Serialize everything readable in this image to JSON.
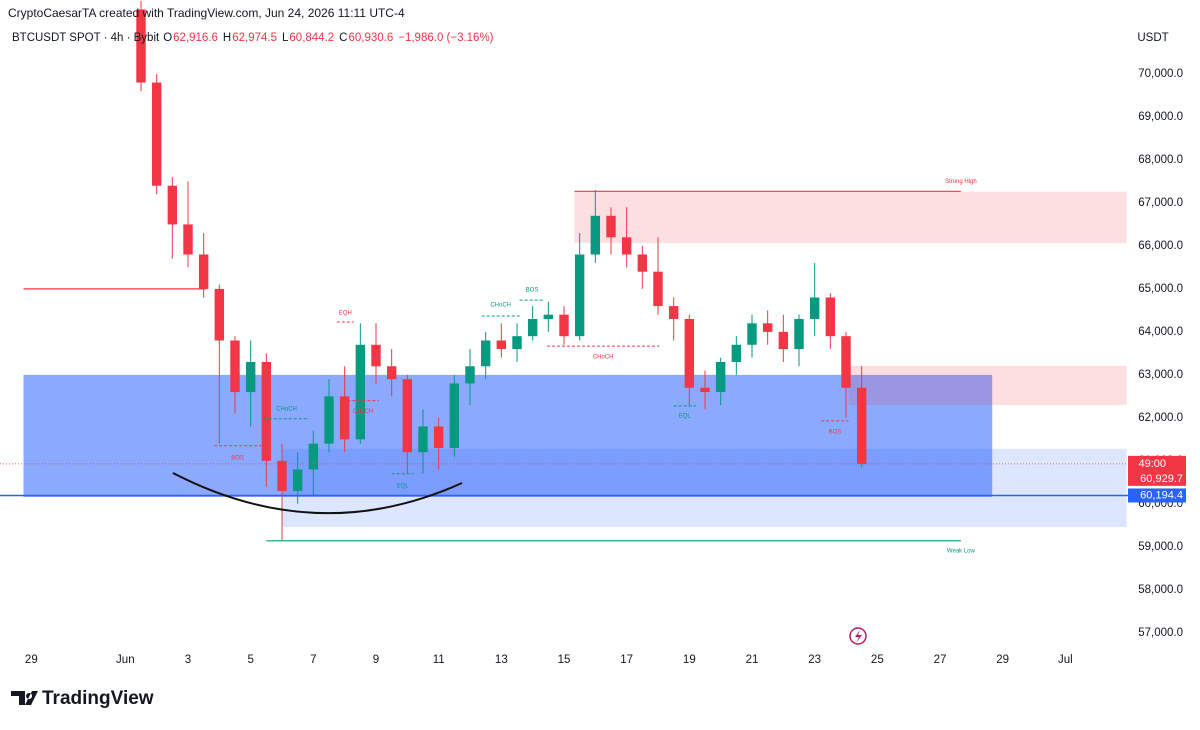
{
  "chart_data": {
    "type": "candlestick",
    "credit": "CryptoCaesarTA created with TradingView.com, Jun 24, 2026 11:11 UTC-4",
    "symbol": "BTCUSDT SPOT · 4h · Bybit",
    "ohlc": [
      {
        "label": "O",
        "value": "62,916.6"
      },
      {
        "label": "H",
        "value": "62,974.5"
      },
      {
        "label": "L",
        "value": "60,844.2"
      },
      {
        "label": "C",
        "value": "60,930.6"
      }
    ],
    "change": "−1,986.0 (−3.16%)",
    "currency": "USDT",
    "brand": "TradingView",
    "up_color": "#089981",
    "down_color": "#f23645",
    "grid": false,
    "xlim": [
      "2026-05-28T00:00",
      "2026-07-03T00:00"
    ],
    "ylim": [
      56600,
      71720
    ],
    "xticks": [
      {
        "value": "2026-05-29T00:00",
        "label": "29"
      },
      {
        "value": "2026-06-01T00:00",
        "label": "Jun"
      },
      {
        "value": "2026-06-03T00:00",
        "label": "3"
      },
      {
        "value": "2026-06-05T00:00",
        "label": "5"
      },
      {
        "value": "2026-06-07T00:00",
        "label": "7"
      },
      {
        "value": "2026-06-09T00:00",
        "label": "9"
      },
      {
        "value": "2026-06-11T00:00",
        "label": "11"
      },
      {
        "value": "2026-06-13T00:00",
        "label": "13"
      },
      {
        "value": "2026-06-15T00:00",
        "label": "15"
      },
      {
        "value": "2026-06-17T00:00",
        "label": "17"
      },
      {
        "value": "2026-06-19T00:00",
        "label": "19"
      },
      {
        "value": "2026-06-21T00:00",
        "label": "21"
      },
      {
        "value": "2026-06-23T00:00",
        "label": "23"
      },
      {
        "value": "2026-06-25T00:00",
        "label": "25"
      },
      {
        "value": "2026-06-27T00:00",
        "label": "27"
      },
      {
        "value": "2026-06-29T00:00",
        "label": "29"
      },
      {
        "value": "2026-07-01T00:00",
        "label": "Jul"
      }
    ],
    "yticks": [
      {
        "value": 57000,
        "label": "57,000.0"
      },
      {
        "value": 58000,
        "label": "58,000.0"
      },
      {
        "value": 59000,
        "label": "59,000.0"
      },
      {
        "value": 60000,
        "label": "60,000.0"
      },
      {
        "value": 61000,
        "label": "61,000.0"
      },
      {
        "value": 62000,
        "label": "62,000.0"
      },
      {
        "value": 63000,
        "label": "63,000.0"
      },
      {
        "value": 64000,
        "label": "64,000.0"
      },
      {
        "value": 65000,
        "label": "65,000.0"
      },
      {
        "value": 66000,
        "label": "66,000.0"
      },
      {
        "value": 67000,
        "label": "67,000.0"
      },
      {
        "value": 68000,
        "label": "68,000.0"
      },
      {
        "value": 69000,
        "label": "69,000.0"
      },
      {
        "value": 70000,
        "label": "70,000.0"
      }
    ],
    "x": [
      "2026-06-01T12:00",
      "2026-06-02T00:00",
      "2026-06-02T12:00",
      "2026-06-03T00:00",
      "2026-06-03T12:00",
      "2026-06-04T00:00",
      "2026-06-04T12:00",
      "2026-06-05T00:00",
      "2026-06-05T12:00",
      "2026-06-06T00:00",
      "2026-06-06T12:00",
      "2026-06-07T00:00",
      "2026-06-07T12:00",
      "2026-06-08T00:00",
      "2026-06-08T12:00",
      "2026-06-09T00:00",
      "2026-06-09T12:00",
      "2026-06-10T00:00",
      "2026-06-10T12:00",
      "2026-06-11T00:00",
      "2026-06-11T12:00",
      "2026-06-12T00:00",
      "2026-06-12T12:00",
      "2026-06-13T00:00",
      "2026-06-13T12:00",
      "2026-06-14T00:00",
      "2026-06-14T12:00",
      "2026-06-15T00:00",
      "2026-06-15T12:00",
      "2026-06-16T00:00",
      "2026-06-16T12:00",
      "2026-06-17T00:00",
      "2026-06-17T12:00",
      "2026-06-18T00:00",
      "2026-06-18T12:00",
      "2026-06-19T00:00",
      "2026-06-19T12:00",
      "2026-06-20T00:00",
      "2026-06-20T12:00",
      "2026-06-21T00:00",
      "2026-06-21T12:00",
      "2026-06-22T00:00",
      "2026-06-22T12:00",
      "2026-06-23T00:00",
      "2026-06-23T12:00",
      "2026-06-24T00:00",
      "2026-06-24T12:00"
    ],
    "open": [
      71500,
      69800,
      67400,
      66500,
      65800,
      65000,
      63800,
      62600,
      63300,
      61000,
      60300,
      60800,
      61400,
      62500,
      61500,
      63700,
      63200,
      62900,
      61200,
      61800,
      61300,
      62800,
      63200,
      63800,
      63600,
      63900,
      64300,
      64400,
      63900,
      65800,
      66700,
      66200,
      65800,
      65400,
      64600,
      64300,
      62700,
      62600,
      63300,
      63700,
      64200,
      64000,
      63600,
      64300,
      64800,
      63900,
      62700
    ],
    "high": [
      71700,
      70000,
      67600,
      67500,
      66300,
      65100,
      63900,
      63800,
      63500,
      61400,
      61200,
      61700,
      62900,
      63200,
      64200,
      64200,
      63600,
      63000,
      62200,
      62000,
      63000,
      63600,
      64000,
      64200,
      64200,
      64600,
      64700,
      64600,
      66300,
      67300,
      66900,
      66900,
      66000,
      66200,
      64800,
      64400,
      63100,
      63400,
      63900,
      64400,
      64500,
      64400,
      64400,
      65600,
      64900,
      64000,
      63200
    ],
    "low": [
      69600,
      67200,
      65700,
      65500,
      64800,
      61400,
      62100,
      61800,
      60400,
      59150,
      60000,
      60200,
      61200,
      61200,
      61400,
      62800,
      62500,
      60700,
      60700,
      60800,
      61100,
      62300,
      62900,
      63400,
      63300,
      63800,
      64000,
      63700,
      63800,
      65600,
      65800,
      65500,
      65000,
      64400,
      63800,
      62300,
      62200,
      62300,
      63000,
      63400,
      63700,
      63300,
      63200,
      63900,
      63600,
      62000,
      60850
    ],
    "close": [
      69800,
      67400,
      66500,
      65800,
      65000,
      63800,
      62600,
      63300,
      61000,
      60300,
      60800,
      61400,
      62500,
      61500,
      63700,
      63200,
      62900,
      61200,
      61800,
      61300,
      62800,
      63200,
      63800,
      63600,
      63900,
      64300,
      64400,
      63900,
      65800,
      66700,
      66200,
      65800,
      65400,
      64600,
      64300,
      62700,
      62600,
      63300,
      63700,
      64200,
      64000,
      63600,
      64300,
      64800,
      63900,
      62700,
      60930
    ],
    "zones": [
      {
        "top": 63000,
        "bottom": 60160,
        "from": "2026-05-28T18:00",
        "to": "2026-06-28T16:00",
        "color": "rgba(41,98,255,0.55)"
      },
      {
        "top": 61280,
        "bottom": 59460,
        "from": "2026-06-06T00:00",
        "to": "2026-07-02T23:00",
        "color": "rgba(41,98,255,0.16)"
      },
      {
        "top": 67260,
        "bottom": 66070,
        "from": "2026-06-15T08:00",
        "to": "2026-07-02T23:00",
        "color": "rgba(242,54,69,0.16)"
      },
      {
        "top": 63210,
        "bottom": 62300,
        "from": "2026-06-24T02:00",
        "to": "2026-07-02T23:00",
        "color": "rgba(242,54,69,0.16)"
      }
    ],
    "hlines": [
      {
        "price": 65000,
        "from": "2026-05-28T18:00",
        "to": "2026-06-03T14:00",
        "color": "#f23645"
      }
    ],
    "levels": [
      {
        "text": "Strong High",
        "price": 67270,
        "from": "2026-06-15T08:00",
        "to": "2026-06-27T16:00",
        "color": "#f23645"
      },
      {
        "text": "Weak Low",
        "price": 59140,
        "from": "2026-06-05T12:00",
        "to": "2026-06-27T16:00",
        "color": "#089981"
      }
    ],
    "structure": [
      {
        "text": "BOS",
        "price": 61350,
        "from": "2026-06-03T20:00",
        "to": "2026-06-05T08:00",
        "color": "#f23645"
      },
      {
        "text": "CHoCH",
        "price": 61980,
        "from": "2026-06-05T10:00",
        "to": "2026-06-06T21:00",
        "color": "#089981"
      },
      {
        "text": "EQH",
        "price": 64230,
        "from": "2026-06-07T18:00",
        "to": "2026-06-08T07:00",
        "color": "#f23645"
      },
      {
        "text": "CHoCH",
        "price": 62400,
        "from": "2026-06-08T02:00",
        "to": "2026-06-09T02:00",
        "color": "#f23645"
      },
      {
        "text": "EQL",
        "price": 60700,
        "from": "2026-06-09T12:00",
        "to": "2026-06-10T05:00",
        "color": "#089981"
      },
      {
        "text": "CHoCH",
        "price": 64370,
        "from": "2026-06-12T09:00",
        "to": "2026-06-13T14:00",
        "color": "#089981"
      },
      {
        "text": "BOS",
        "price": 64740,
        "from": "2026-06-13T14:00",
        "to": "2026-06-14T09:00",
        "color": "#089981"
      },
      {
        "text": "CHoCH",
        "price": 63670,
        "from": "2026-06-14T11:00",
        "to": "2026-06-18T01:00",
        "color": "#f23645"
      },
      {
        "text": "EQL",
        "price": 62280,
        "from": "2026-06-18T12:00",
        "to": "2026-06-19T05:00",
        "color": "#089981"
      },
      {
        "text": "BOS",
        "price": 61930,
        "from": "2026-06-23T05:00",
        "to": "2026-06-24T02:00",
        "color": "#f23645"
      }
    ],
    "price_lines": [
      {
        "value": 60929.7,
        "label": "60,929.7",
        "countdown": "49:00",
        "color": "#f23645"
      },
      {
        "value": 60194.4,
        "label": "60,194.4",
        "color": "#2962ff"
      }
    ]
  }
}
